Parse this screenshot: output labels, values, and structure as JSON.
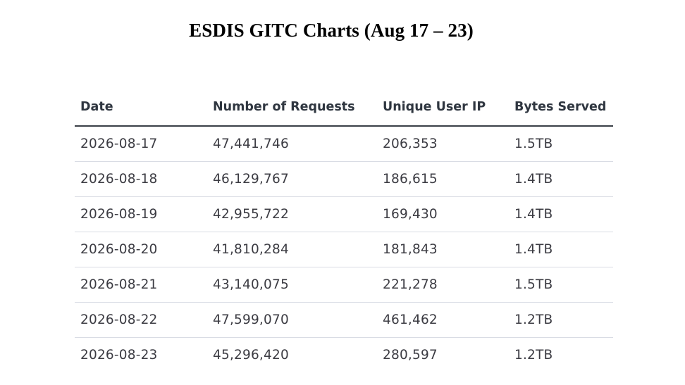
{
  "title": "ESDIS GITC Charts (Aug 17 – 23)",
  "table": {
    "headers": [
      "Date",
      "Number of Requests",
      "Unique User IP",
      "Bytes Served"
    ],
    "rows": [
      [
        "2026-08-17",
        "47,441,746",
        "206,353",
        "1.5TB"
      ],
      [
        "2026-08-18",
        "46,129,767",
        "186,615",
        "1.4TB"
      ],
      [
        "2026-08-19",
        "42,955,722",
        "169,430",
        "1.4TB"
      ],
      [
        "2026-08-20",
        "41,810,284",
        "181,843",
        "1.4TB"
      ],
      [
        "2026-08-21",
        "43,140,075",
        "221,278",
        "1.5TB"
      ],
      [
        "2026-08-22",
        "47,599,070",
        "461,462",
        "1.2TB"
      ],
      [
        "2026-08-23",
        "45,296,420",
        "280,597",
        "1.2TB"
      ]
    ]
  },
  "colors": {
    "header_text": "#2f3640",
    "cell_text": "#3c3c43",
    "header_rule": "#3a3f47",
    "row_rule": "#d9dce4"
  }
}
